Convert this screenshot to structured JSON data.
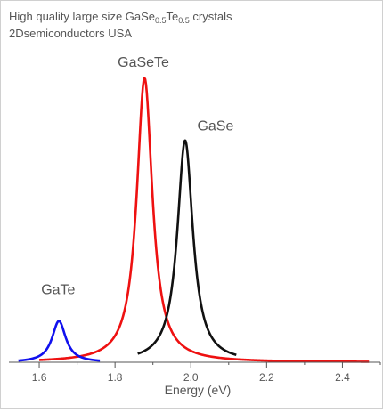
{
  "chart_data": {
    "type": "line",
    "title_lines": [
      {
        "parts": [
          {
            "text": "High quality large size GaSe",
            "sub": false
          },
          {
            "text": "0.5",
            "sub": true
          },
          {
            "text": "Te",
            "sub": false
          },
          {
            "text": "0.5",
            "sub": true
          },
          {
            "text": " crystals",
            "sub": false
          }
        ]
      },
      {
        "parts": [
          {
            "text": "2Dsemiconductors USA",
            "sub": false
          }
        ]
      }
    ],
    "xlabel": "Energy (eV)",
    "ylabel": "",
    "xlim": [
      1.52,
      2.5
    ],
    "ylim": [
      0,
      1.08
    ],
    "x_ticks": [
      1.6,
      1.8,
      2.0,
      2.2,
      2.4
    ],
    "x_tick_labels": [
      "1.6",
      "1.8",
      "2.0",
      "2.2",
      "2.4"
    ],
    "grid": false,
    "legend": "none",
    "series": [
      {
        "label": "GaTe",
        "color": "#1111ee",
        "peak": 1.652,
        "height": 0.145,
        "width": 0.022,
        "range": [
          1.545,
          1.76
        ],
        "label_x": 1.65,
        "label_y": 0.24
      },
      {
        "label": "GaSeTe",
        "color": "#ee1111",
        "peak": 1.878,
        "height": 1.0,
        "width": 0.025,
        "range": [
          1.6,
          2.47
        ],
        "label_x": 1.875,
        "label_y": 1.04
      },
      {
        "label": "GaSe",
        "color": "#111111",
        "peak": 1.985,
        "height": 0.78,
        "width": 0.025,
        "range": [
          1.86,
          2.12
        ],
        "label_x": 2.065,
        "label_y": 0.815
      }
    ]
  }
}
